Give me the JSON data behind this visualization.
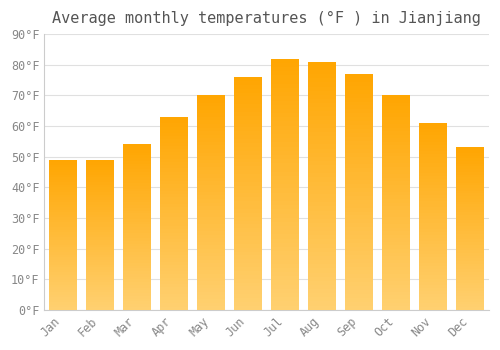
{
  "title": "Average monthly temperatures (°F ) in Jianjiang",
  "months": [
    "Jan",
    "Feb",
    "Mar",
    "Apr",
    "May",
    "Jun",
    "Jul",
    "Aug",
    "Sep",
    "Oct",
    "Nov",
    "Dec"
  ],
  "values": [
    49,
    49,
    54,
    63,
    70,
    76,
    82,
    81,
    77,
    70,
    61,
    53
  ],
  "bar_color_top": "#FFA500",
  "bar_color_bottom": "#FFD070",
  "ylim": [
    0,
    90
  ],
  "yticks": [
    0,
    10,
    20,
    30,
    40,
    50,
    60,
    70,
    80,
    90
  ],
  "ytick_labels": [
    "0°F",
    "10°F",
    "20°F",
    "30°F",
    "40°F",
    "50°F",
    "60°F",
    "70°F",
    "80°F",
    "90°F"
  ],
  "background_color": "#ffffff",
  "grid_color": "#e0e0e0",
  "title_fontsize": 11,
  "tick_fontsize": 8.5,
  "tick_color": "#888888",
  "bar_edge_color": "#FFA500",
  "bar_width": 0.75
}
